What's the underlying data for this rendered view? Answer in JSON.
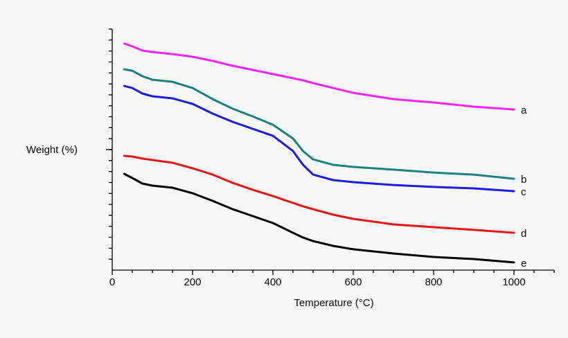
{
  "chart_data": {
    "type": "line",
    "xlabel": "Temperature (°C)",
    "ylabel": "Weight (%)",
    "x": [
      30,
      50,
      75,
      100,
      150,
      200,
      250,
      300,
      350,
      400,
      450,
      475,
      500,
      550,
      600,
      700,
      800,
      900,
      1000
    ],
    "series": [
      {
        "name": "a",
        "color": "#ff22ff",
        "values": [
          20.67,
          20.42,
          20.04,
          19.91,
          19.72,
          19.47,
          19.09,
          18.65,
          18.27,
          17.89,
          17.51,
          17.32,
          17.07,
          16.62,
          16.18,
          15.61,
          15.3,
          14.92,
          14.66
        ]
      },
      {
        "name": "b",
        "color": "#1a8080",
        "values": [
          18.33,
          18.2,
          17.7,
          17.38,
          17.19,
          16.62,
          15.61,
          14.73,
          14.03,
          13.27,
          12.01,
          10.87,
          10.11,
          9.61,
          9.42,
          9.17,
          8.91,
          8.72,
          8.34
        ]
      },
      {
        "name": "c",
        "color": "#1a1aee",
        "values": [
          16.81,
          16.62,
          16.12,
          15.87,
          15.68,
          15.17,
          14.29,
          13.53,
          12.89,
          12.26,
          10.87,
          9.61,
          8.72,
          8.22,
          8.03,
          7.77,
          7.59,
          7.46,
          7.21
        ]
      },
      {
        "name": "d",
        "color": "#ee1111",
        "values": [
          10.43,
          10.37,
          10.18,
          10.05,
          9.8,
          9.29,
          8.72,
          7.96,
          7.33,
          6.76,
          6.13,
          5.82,
          5.56,
          5.06,
          4.68,
          4.17,
          3.92,
          3.67,
          3.41
        ]
      },
      {
        "name": "e",
        "color": "#000000",
        "values": [
          8.79,
          8.41,
          7.9,
          7.71,
          7.52,
          7.02,
          6.32,
          5.56,
          4.93,
          4.3,
          3.41,
          2.97,
          2.65,
          2.21,
          1.9,
          1.52,
          1.2,
          1.01,
          0.7
        ]
      }
    ],
    "xlim": [
      0,
      1100
    ],
    "xticks": [
      0,
      200,
      400,
      600,
      800,
      1000
    ],
    "xminorticks": [
      50,
      100,
      150,
      250,
      300,
      350,
      450,
      500,
      550,
      650,
      700,
      750,
      850,
      900,
      950,
      1050,
      1100
    ],
    "ylim": [
      0,
      22
    ],
    "yticks": [
      1,
      2,
      3,
      4,
      5,
      6,
      7,
      8,
      9,
      10,
      11,
      12,
      13,
      14,
      15,
      16,
      17,
      18,
      19,
      20,
      21,
      22
    ],
    "ymajorticks": [
      11
    ]
  }
}
